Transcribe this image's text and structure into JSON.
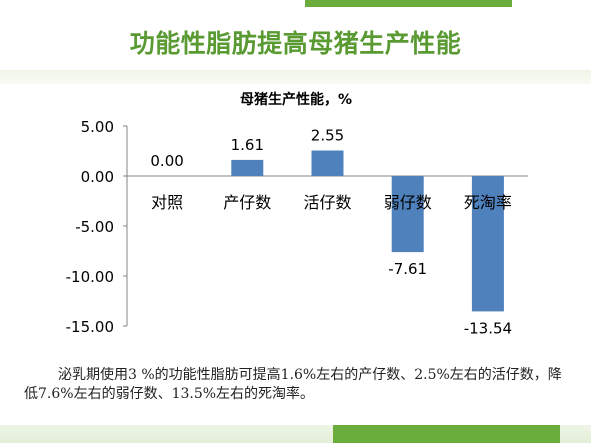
{
  "slide": {
    "title": "功能性脂肪提高母猪生产性能",
    "caption": "泌乳期使用3 %的功能性脂肪可提高1.6%左右的产仔数、2.5%左右的活仔数，降低7.6%左右的弱仔数、13.5%左右的死淘率。"
  },
  "colors": {
    "accent": "#6aad3d",
    "title": "#5a9a32",
    "bar": "#4f81bd"
  },
  "chart_data": {
    "type": "bar",
    "title": "母猪生产性能，%",
    "categories": [
      "对照",
      "产仔数",
      "活仔数",
      "弱仔数",
      "死淘率"
    ],
    "values": [
      0.0,
      1.61,
      2.55,
      -7.61,
      -13.54
    ],
    "value_labels": [
      "0.00",
      "1.61",
      "2.55",
      "-7.61",
      "-13.54"
    ],
    "ylim": [
      -15,
      5
    ],
    "yticks": [
      "5.00",
      "0.00",
      "-5.00",
      "-10.00",
      "-15.00"
    ],
    "ytick_values": [
      5,
      0,
      -5,
      -10,
      -15
    ],
    "xlabel": "",
    "ylabel": "",
    "grid": false,
    "legend": "none"
  }
}
